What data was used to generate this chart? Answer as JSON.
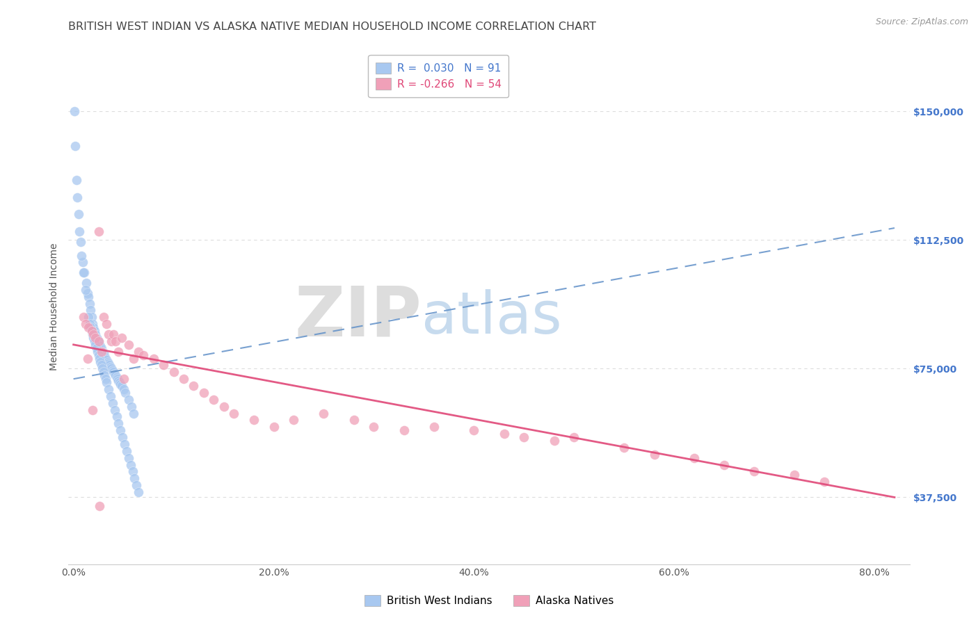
{
  "title": "BRITISH WEST INDIAN VS ALASKA NATIVE MEDIAN HOUSEHOLD INCOME CORRELATION CHART",
  "source": "Source: ZipAtlas.com",
  "ylabel": "Median Household Income",
  "watermark_zip": "ZIP",
  "watermark_atlas": "atlas",
  "blue_R": 0.03,
  "blue_N": 91,
  "pink_R": -0.266,
  "pink_N": 54,
  "blue_color": "#a8c8f0",
  "pink_color": "#f0a0b8",
  "blue_line_color": "#6090c8",
  "pink_line_color": "#e04878",
  "blue_trend_x0": 0.0,
  "blue_trend_y0": 72000,
  "blue_trend_x1": 0.82,
  "blue_trend_y1": 116000,
  "pink_trend_x0": 0.0,
  "pink_trend_y0": 82000,
  "pink_trend_x1": 0.82,
  "pink_trend_y1": 37500,
  "ytick_labels": [
    "$37,500",
    "$75,000",
    "$112,500",
    "$150,000"
  ],
  "ytick_values": [
    37500,
    75000,
    112500,
    150000
  ],
  "xtick_labels": [
    "0.0%",
    "20.0%",
    "40.0%",
    "60.0%",
    "80.0%"
  ],
  "xtick_values": [
    0.0,
    0.2,
    0.4,
    0.6,
    0.8
  ],
  "xlim": [
    -0.005,
    0.835
  ],
  "ylim": [
    18000,
    168000
  ],
  "blue_x": [
    0.001,
    0.003,
    0.005,
    0.007,
    0.009,
    0.011,
    0.013,
    0.014,
    0.015,
    0.016,
    0.017,
    0.018,
    0.019,
    0.02,
    0.021,
    0.022,
    0.023,
    0.024,
    0.025,
    0.025,
    0.026,
    0.027,
    0.028,
    0.028,
    0.029,
    0.03,
    0.031,
    0.031,
    0.032,
    0.033,
    0.034,
    0.035,
    0.036,
    0.037,
    0.038,
    0.039,
    0.04,
    0.041,
    0.042,
    0.043,
    0.044,
    0.045,
    0.046,
    0.047,
    0.048,
    0.05,
    0.052,
    0.055,
    0.058,
    0.06,
    0.002,
    0.004,
    0.006,
    0.008,
    0.01,
    0.012,
    0.015,
    0.016,
    0.017,
    0.018,
    0.019,
    0.02,
    0.021,
    0.022,
    0.023,
    0.024,
    0.025,
    0.026,
    0.027,
    0.028,
    0.029,
    0.03,
    0.031,
    0.032,
    0.033,
    0.035,
    0.037,
    0.039,
    0.041,
    0.043,
    0.045,
    0.047,
    0.049,
    0.051,
    0.053,
    0.055,
    0.057,
    0.059,
    0.061,
    0.063,
    0.065
  ],
  "blue_y": [
    150000,
    130000,
    120000,
    112000,
    106000,
    103000,
    100000,
    97000,
    96000,
    94000,
    92000,
    90000,
    88000,
    87000,
    86000,
    85000,
    84000,
    83500,
    83000,
    82500,
    82000,
    81500,
    81000,
    80500,
    80000,
    79500,
    79000,
    78500,
    78000,
    77500,
    77000,
    76500,
    76000,
    75500,
    75000,
    74500,
    74000,
    73500,
    73000,
    72500,
    72000,
    71500,
    71000,
    70500,
    70000,
    69000,
    68000,
    66000,
    64000,
    62000,
    140000,
    125000,
    115000,
    108000,
    103000,
    98000,
    90000,
    88000,
    87000,
    86000,
    85000,
    84000,
    83000,
    82000,
    81000,
    80000,
    79000,
    78000,
    77000,
    76000,
    75000,
    74000,
    73000,
    72000,
    71000,
    69000,
    67000,
    65000,
    63000,
    61000,
    59000,
    57000,
    55000,
    53000,
    51000,
    49000,
    47000,
    45000,
    43000,
    41000,
    39000
  ],
  "pink_x": [
    0.01,
    0.012,
    0.015,
    0.018,
    0.02,
    0.022,
    0.025,
    0.025,
    0.028,
    0.03,
    0.033,
    0.035,
    0.038,
    0.04,
    0.042,
    0.045,
    0.048,
    0.05,
    0.055,
    0.06,
    0.065,
    0.07,
    0.08,
    0.09,
    0.1,
    0.11,
    0.12,
    0.13,
    0.14,
    0.15,
    0.16,
    0.18,
    0.2,
    0.22,
    0.25,
    0.28,
    0.3,
    0.33,
    0.36,
    0.4,
    0.43,
    0.45,
    0.48,
    0.5,
    0.55,
    0.58,
    0.62,
    0.65,
    0.68,
    0.72,
    0.75,
    0.014,
    0.019,
    0.026
  ],
  "pink_y": [
    90000,
    88000,
    87000,
    86000,
    85000,
    84000,
    115000,
    83000,
    80000,
    90000,
    88000,
    85000,
    83000,
    85000,
    83000,
    80000,
    84000,
    72000,
    82000,
    78000,
    80000,
    79000,
    78000,
    76000,
    74000,
    72000,
    70000,
    68000,
    66000,
    64000,
    62000,
    60000,
    58000,
    60000,
    62000,
    60000,
    58000,
    57000,
    58000,
    57000,
    56000,
    55000,
    54000,
    55000,
    52000,
    50000,
    49000,
    47000,
    45000,
    44000,
    42000,
    78000,
    63000,
    35000
  ],
  "legend_box_color": "#ffffff",
  "legend_border_color": "#bbbbbb",
  "grid_color": "#dddddd",
  "title_fontsize": 11.5,
  "axis_label_fontsize": 10,
  "tick_fontsize": 10,
  "right_tick_color": "#4477cc",
  "title_color": "#444444",
  "background_color": "#ffffff"
}
